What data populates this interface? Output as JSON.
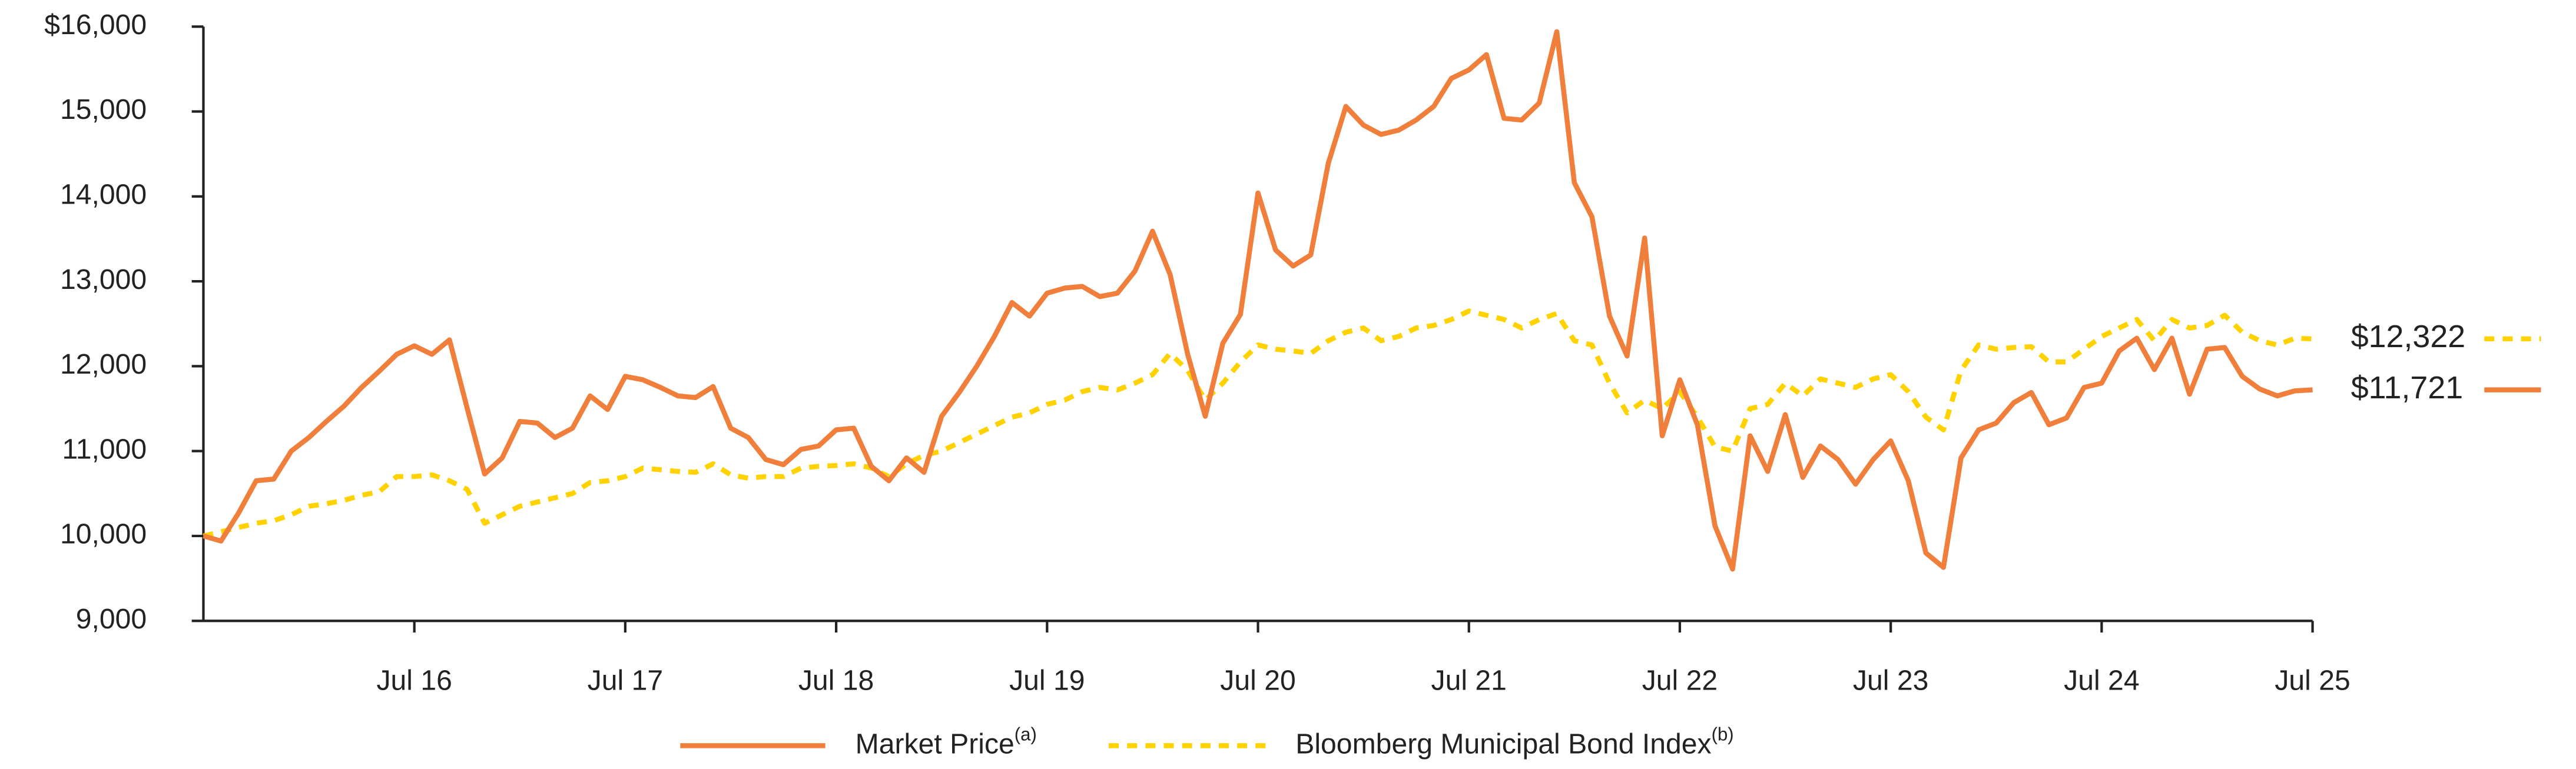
{
  "chart_data": {
    "type": "line",
    "categories": [
      null,
      null,
      null,
      null,
      null,
      null,
      null,
      null,
      null,
      null,
      null,
      null,
      "Jul 16",
      null,
      null,
      null,
      null,
      null,
      null,
      null,
      null,
      null,
      null,
      null,
      "Jul 17",
      null,
      null,
      null,
      null,
      null,
      null,
      null,
      null,
      null,
      null,
      null,
      "Jul 18",
      null,
      null,
      null,
      null,
      null,
      null,
      null,
      null,
      null,
      null,
      null,
      "Jul 19",
      null,
      null,
      null,
      null,
      null,
      null,
      null,
      null,
      null,
      null,
      null,
      "Jul 20",
      null,
      null,
      null,
      null,
      null,
      null,
      null,
      null,
      null,
      null,
      null,
      "Jul 21",
      null,
      null,
      null,
      null,
      null,
      null,
      null,
      null,
      null,
      null,
      null,
      "Jul 22",
      null,
      null,
      null,
      null,
      null,
      null,
      null,
      null,
      null,
      null,
      null,
      "Jul 23",
      null,
      null,
      null,
      null,
      null,
      null,
      null,
      null,
      null,
      null,
      null,
      "Jul 24",
      null,
      null,
      null,
      null,
      null,
      null,
      null,
      null,
      null,
      null,
      null,
      "Jul 25"
    ],
    "series": [
      {
        "name": "Market Price",
        "name_note": "(a)",
        "color": "#f07f3c",
        "dashed": false,
        "last_label": "$11,721",
        "values": [
          10000,
          9940,
          10270,
          10650,
          10670,
          11000,
          11160,
          11350,
          11530,
          11750,
          11940,
          12140,
          12240,
          12140,
          12310,
          11510,
          10730,
          10920,
          11350,
          11330,
          11160,
          11270,
          11650,
          11490,
          11880,
          11840,
          11750,
          11650,
          11630,
          11760,
          11270,
          11160,
          10900,
          10840,
          11020,
          11060,
          11250,
          11270,
          10820,
          10650,
          10920,
          10750,
          11410,
          11690,
          12000,
          12350,
          12750,
          12590,
          12860,
          12920,
          12940,
          12820,
          12860,
          13120,
          13590,
          13080,
          12140,
          11410,
          12270,
          12610,
          14040,
          13370,
          13180,
          13310,
          14390,
          15060,
          14840,
          14730,
          14780,
          14900,
          15060,
          15390,
          15490,
          15670,
          14920,
          14900,
          15100,
          15940,
          14160,
          13760,
          12590,
          12120,
          13510,
          11180,
          11840,
          11310,
          10120,
          9610,
          11180,
          10760,
          11430,
          10690,
          11060,
          10900,
          10610,
          10900,
          11120,
          10650,
          9800,
          9630,
          10920,
          11250,
          11330,
          11570,
          11690,
          11310,
          11390,
          11750,
          11800,
          12180,
          12330,
          11960,
          12330,
          11670,
          12200,
          12220,
          11880,
          11730,
          11650,
          11710,
          11721
        ]
      },
      {
        "name": "Bloomberg Municipal Bond Index",
        "name_note": "(b)",
        "color": "#ffd200",
        "dashed": true,
        "last_label": "$12,322",
        "values": [
          10000,
          10050,
          10100,
          10150,
          10180,
          10250,
          10350,
          10380,
          10420,
          10480,
          10520,
          10700,
          10700,
          10720,
          10650,
          10550,
          10150,
          10250,
          10350,
          10400,
          10450,
          10500,
          10630,
          10650,
          10700,
          10800,
          10780,
          10760,
          10750,
          10850,
          10720,
          10680,
          10700,
          10700,
          10800,
          10820,
          10830,
          10850,
          10800,
          10700,
          10850,
          10950,
          11000,
          11100,
          11200,
          11300,
          11400,
          11450,
          11550,
          11600,
          11700,
          11750,
          11720,
          11800,
          11900,
          12150,
          11950,
          11600,
          11800,
          12050,
          12250,
          12200,
          12180,
          12150,
          12300,
          12400,
          12450,
          12300,
          12350,
          12450,
          12480,
          12550,
          12650,
          12600,
          12550,
          12450,
          12550,
          12620,
          12300,
          12250,
          11800,
          11450,
          11600,
          11500,
          11700,
          11400,
          11050,
          11000,
          11500,
          11550,
          11800,
          11650,
          11850,
          11800,
          11750,
          11850,
          11900,
          11700,
          11400,
          11250,
          11950,
          12250,
          12200,
          12220,
          12230,
          12050,
          12050,
          12200,
          12350,
          12450,
          12550,
          12300,
          12550,
          12450,
          12480,
          12600,
          12400,
          12300,
          12250,
          12330,
          12322
        ]
      }
    ],
    "ylim": [
      9000,
      16000
    ],
    "yticks": [
      {
        "value": 9000,
        "label": "9,000"
      },
      {
        "value": 10000,
        "label": "10,000"
      },
      {
        "value": 11000,
        "label": "11,000"
      },
      {
        "value": 12000,
        "label": "12,000"
      },
      {
        "value": 13000,
        "label": "13,000"
      },
      {
        "value": 14000,
        "label": "14,000"
      },
      {
        "value": 15000,
        "label": "15,000"
      },
      {
        "value": 16000,
        "label": "$16,000"
      }
    ],
    "grid": false,
    "legend": "bottom"
  }
}
